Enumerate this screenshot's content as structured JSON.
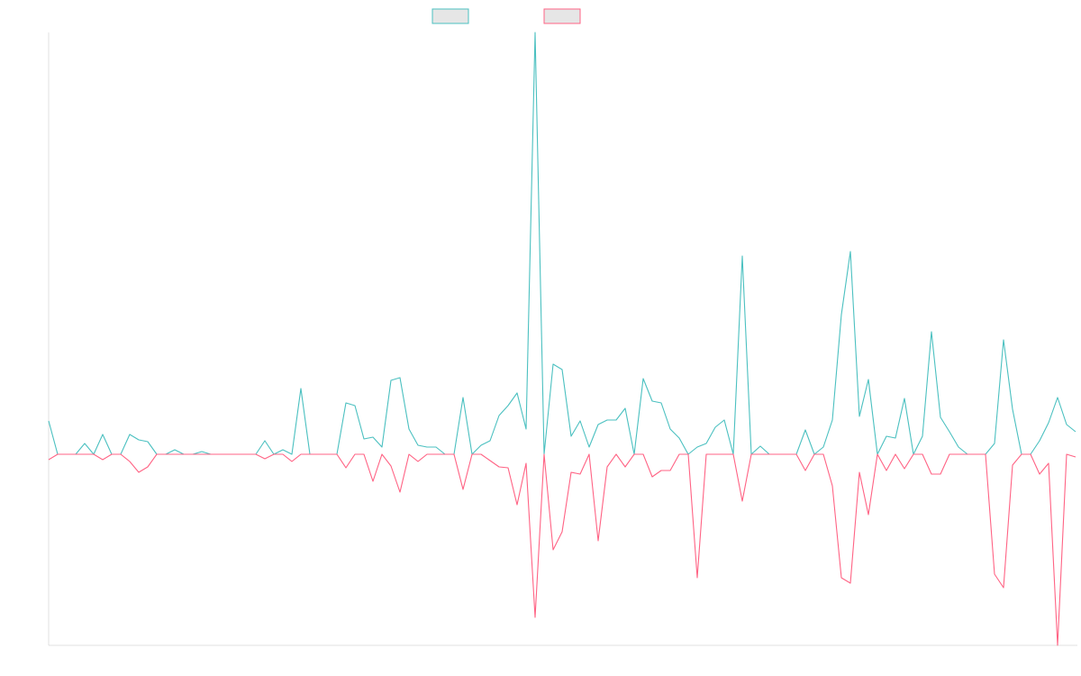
{
  "chart_data": {
    "type": "line",
    "categories": [
      null,
      null,
      null,
      null,
      null,
      null,
      null,
      null,
      null,
      null,
      null,
      null,
      null,
      null,
      null,
      null,
      null,
      null,
      null,
      null,
      null,
      null,
      null,
      null,
      null,
      null,
      null,
      null,
      null,
      null,
      null,
      null,
      null,
      null,
      null,
      null,
      null,
      null,
      null,
      null,
      null,
      null,
      null,
      null,
      null,
      null,
      null,
      null,
      null,
      null,
      null,
      null,
      null,
      null,
      null,
      null,
      null,
      null,
      null,
      null,
      null,
      null,
      null,
      null,
      null,
      null,
      null,
      null,
      null,
      null,
      null,
      null,
      null,
      null,
      null,
      null,
      null,
      null,
      null,
      null,
      null,
      null,
      null,
      null,
      null,
      null,
      null,
      null,
      null,
      null,
      null,
      null,
      null,
      null,
      null,
      null,
      null,
      null,
      null,
      null,
      null,
      null,
      null,
      null,
      null,
      null,
      null,
      null,
      null,
      null,
      null,
      null,
      null,
      null,
      null
    ],
    "ylim": [
      -212,
      468
    ],
    "series": [
      {
        "color": "#4bc0c0",
        "values": [
          37,
          0,
          0,
          0,
          12,
          0,
          22,
          0,
          0,
          22,
          16,
          14,
          0,
          0,
          5,
          0,
          0,
          3,
          0,
          0,
          0,
          0,
          0,
          0,
          15,
          0,
          5,
          0,
          73,
          0,
          0,
          0,
          0,
          57,
          54,
          17,
          19,
          8,
          82,
          85,
          28,
          10,
          8,
          8,
          0,
          0,
          63,
          0,
          10,
          15,
          43,
          54,
          68,
          28,
          468,
          0,
          100,
          94,
          20,
          37,
          8,
          33,
          38,
          38,
          51,
          0,
          84,
          59,
          57,
          28,
          18,
          0,
          8,
          12,
          30,
          38,
          0,
          220,
          0,
          9,
          0,
          0,
          0,
          0,
          27,
          0,
          8,
          38,
          155,
          225,
          42,
          83,
          0,
          20,
          18,
          62,
          0,
          20,
          136,
          41,
          25,
          8,
          0,
          0,
          0,
          12,
          127,
          50,
          0,
          0,
          15,
          35,
          63,
          33,
          25
        ]
      },
      {
        "color": "#ff6384",
        "values": [
          -6,
          0,
          0,
          0,
          0,
          0,
          -6,
          0,
          0,
          -8,
          -20,
          -14,
          0,
          0,
          0,
          0,
          0,
          0,
          0,
          0,
          0,
          0,
          0,
          0,
          -5,
          0,
          0,
          -8,
          0,
          0,
          0,
          0,
          0,
          -15,
          0,
          0,
          -30,
          0,
          -13,
          -42,
          0,
          -8,
          0,
          0,
          0,
          0,
          -39,
          0,
          0,
          -7,
          -14,
          -15,
          -56,
          -10,
          -181,
          0,
          -106,
          -86,
          -20,
          -22,
          0,
          -96,
          -14,
          0,
          -14,
          0,
          0,
          -25,
          -18,
          -18,
          0,
          0,
          -137,
          0,
          0,
          0,
          0,
          -52,
          0,
          0,
          0,
          0,
          0,
          0,
          -18,
          0,
          0,
          -35,
          -137,
          -143,
          -20,
          -67,
          0,
          -18,
          0,
          -16,
          0,
          0,
          -22,
          -22,
          0,
          0,
          0,
          0,
          0,
          -133,
          -148,
          -12,
          0,
          0,
          -22,
          -10,
          -212,
          0,
          -3
        ]
      }
    ]
  }
}
